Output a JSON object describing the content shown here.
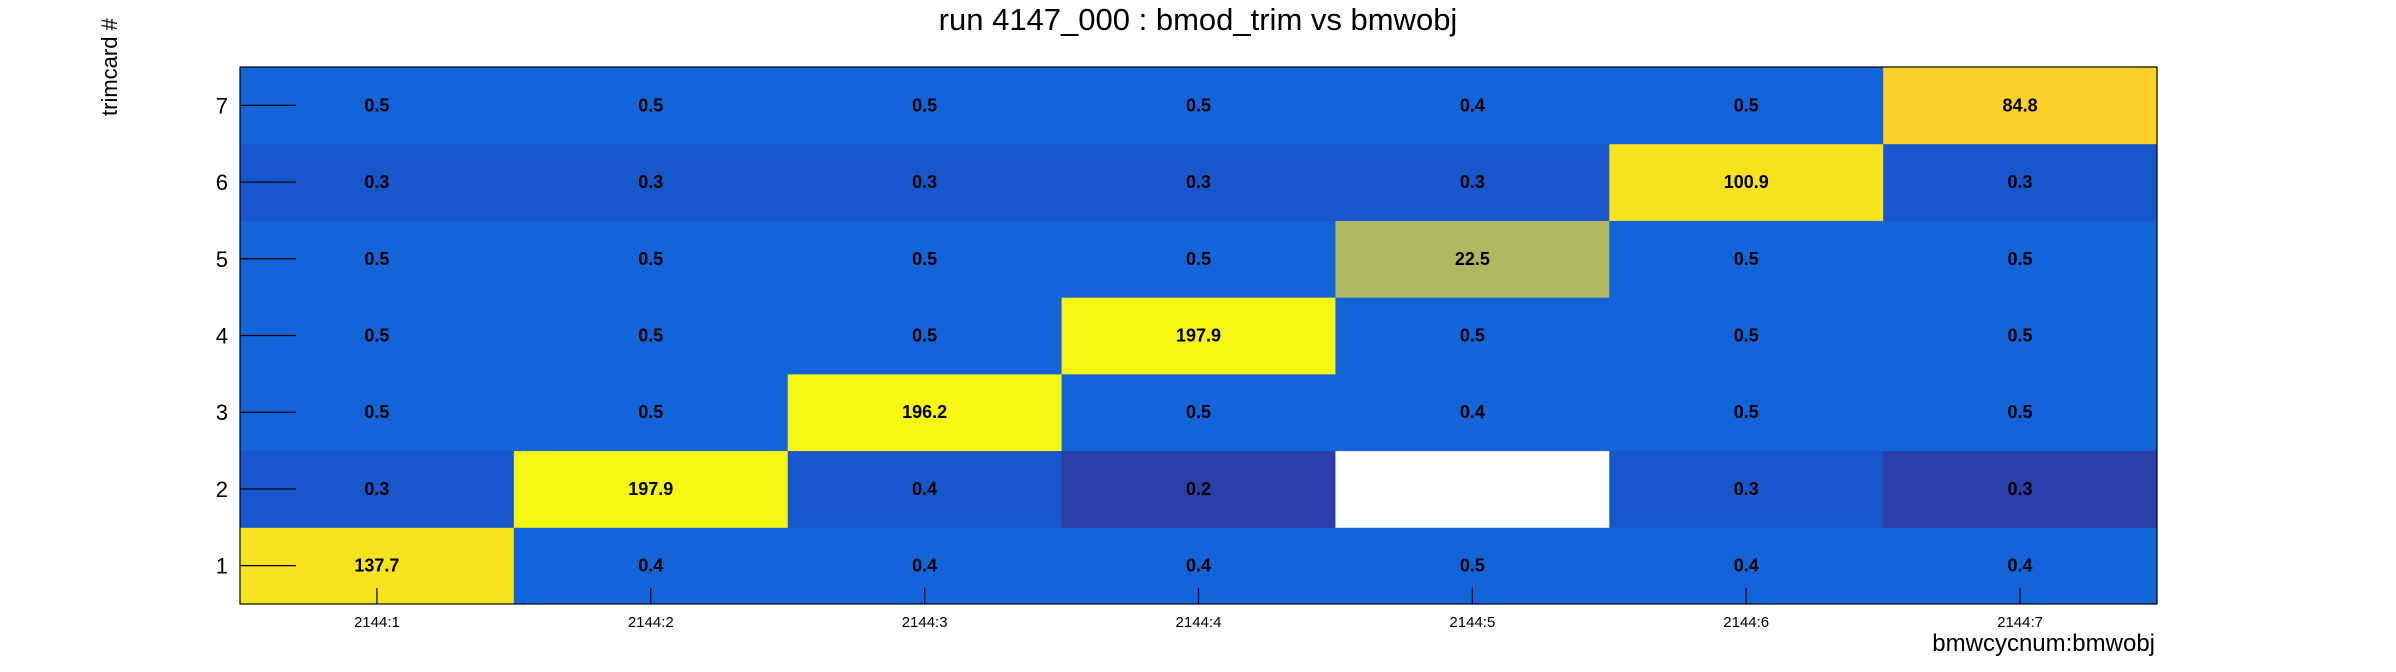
{
  "title": "run 4147_000 : bmod_trim vs bmwobj",
  "chart_data": {
    "type": "heatmap",
    "title": "run 4147_000 : bmod_trim vs bmwobj",
    "xlabel": "bmwcycnum:bmwobj",
    "ylabel": "trimcard #",
    "x_categories": [
      "2144:1",
      "2144:2",
      "2144:3",
      "2144:4",
      "2144:5",
      "2144:6",
      "2144:7"
    ],
    "y_categories": [
      "1",
      "2",
      "3",
      "4",
      "5",
      "6",
      "7"
    ],
    "values": [
      [
        137.7,
        0.4,
        0.4,
        0.4,
        0.5,
        0.4,
        0.4
      ],
      [
        0.3,
        197.9,
        0.4,
        0.2,
        null,
        0.3,
        0.3
      ],
      [
        0.5,
        0.5,
        196.2,
        0.5,
        0.4,
        0.5,
        0.5
      ],
      [
        0.5,
        0.5,
        0.5,
        197.9,
        0.5,
        0.5,
        0.5
      ],
      [
        0.5,
        0.5,
        0.5,
        0.5,
        22.5,
        0.5,
        0.5
      ],
      [
        0.3,
        0.3,
        0.3,
        0.3,
        0.3,
        100.9,
        0.3
      ],
      [
        0.5,
        0.5,
        0.5,
        0.5,
        0.4,
        0.5,
        84.8
      ]
    ],
    "cell_colors": [
      [
        "#f7e21e",
        "#1264d8",
        "#1264d8",
        "#1264d8",
        "#1264d8",
        "#1264d8",
        "#1264d8"
      ],
      [
        "#1856cc",
        "#f5f712",
        "#1856cc",
        "#283fa9",
        "#ffffff",
        "#1856cc",
        "#283fa9"
      ],
      [
        "#1264d8",
        "#1264d8",
        "#f5f712",
        "#1264d8",
        "#1264d8",
        "#1264d8",
        "#1264d8"
      ],
      [
        "#1264d8",
        "#1264d8",
        "#1264d8",
        "#f5f712",
        "#1264d8",
        "#1264d8",
        "#1264d8"
      ],
      [
        "#1264d8",
        "#1264d8",
        "#1264d8",
        "#1264d8",
        "#b0b962",
        "#1264d8",
        "#1264d8"
      ],
      [
        "#1856cc",
        "#1856cc",
        "#1856cc",
        "#1856cc",
        "#1856cc",
        "#f7e21e",
        "#1856cc"
      ],
      [
        "#1264d8",
        "#1264d8",
        "#1264d8",
        "#1264d8",
        "#1264d8",
        "#1264d8",
        "#fbd029"
      ]
    ]
  }
}
